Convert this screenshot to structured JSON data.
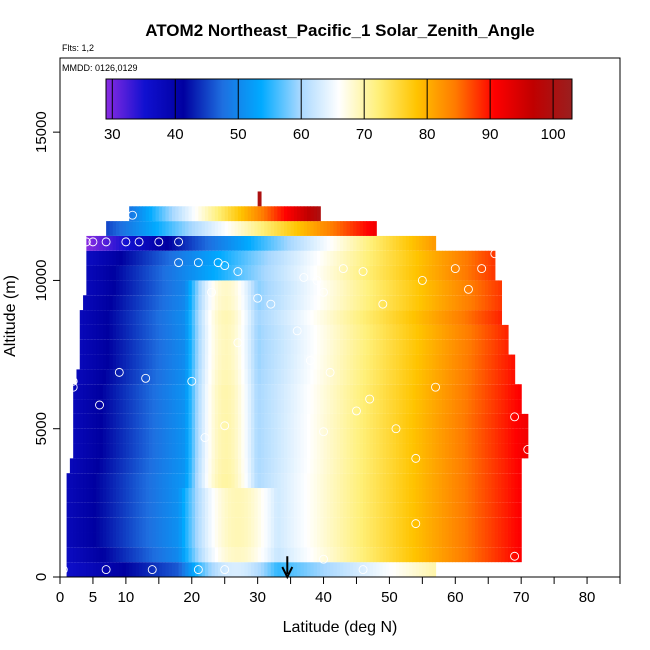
{
  "chart_data": {
    "type": "heatmap",
    "title": "ATOM2 Northeast_Pacific_1 Solar_Zenith_Angle",
    "flights_note": "Flts: 1,2",
    "date_note": "MMDD: 0126,0129",
    "xlabel": "Latitude (deg N)",
    "ylabel": "Altitude (m)",
    "xlim": [
      0,
      85
    ],
    "ylim": [
      0,
      17500
    ],
    "xticks": [
      0,
      5,
      10,
      20,
      30,
      40,
      50,
      60,
      70,
      80
    ],
    "xtick_labels": [
      "0",
      "5",
      "10",
      "20",
      "30",
      "40",
      "50",
      "60",
      "70",
      "80"
    ],
    "xtick_minor": [
      15,
      25,
      35,
      45,
      55,
      65,
      75,
      85
    ],
    "yticks": [
      0,
      5000,
      10000,
      15000
    ],
    "ytick_labels": [
      "0",
      "5000",
      "10000",
      "15000"
    ],
    "colorbar": {
      "min": 29,
      "max": 103,
      "ticks": [
        30,
        40,
        50,
        60,
        70,
        80,
        90,
        100
      ],
      "tick_labels": [
        "30",
        "40",
        "50",
        "60",
        "70",
        "80",
        "90",
        "100"
      ],
      "colors": [
        "#8a2be2",
        "#1010d0",
        "#0000a0",
        "#1e6fe0",
        "#00aaff",
        "#a8d8ff",
        "#ffffff",
        "#fff07a",
        "#ffc400",
        "#ff7a00",
        "#ff0000",
        "#c00000",
        "#9a1f1f"
      ]
    },
    "bands": [
      {
        "alt": [
          0,
          500
        ],
        "lat": [
          1,
          57
        ],
        "v": [
          36,
          70
        ]
      },
      {
        "alt": [
          500,
          1000
        ],
        "lat": [
          1,
          70
        ],
        "v": [
          37,
          91
        ]
      },
      {
        "alt": [
          1000,
          1500
        ],
        "lat": [
          1,
          70
        ],
        "v": [
          38,
          91
        ]
      },
      {
        "alt": [
          1500,
          2000
        ],
        "lat": [
          1,
          70
        ],
        "v": [
          38,
          91
        ]
      },
      {
        "alt": [
          2000,
          2500
        ],
        "lat": [
          1,
          70
        ],
        "v": [
          38,
          91
        ]
      },
      {
        "alt": [
          2500,
          3000
        ],
        "lat": [
          1,
          70
        ],
        "v": [
          38,
          91
        ]
      },
      {
        "alt": [
          3000,
          3500
        ],
        "lat": [
          1,
          70
        ],
        "v": [
          38,
          91
        ]
      },
      {
        "alt": [
          3500,
          4000
        ],
        "lat": [
          1.5,
          70
        ],
        "v": [
          38,
          91
        ]
      },
      {
        "alt": [
          4000,
          4500
        ],
        "lat": [
          2,
          71
        ],
        "v": [
          38,
          92
        ]
      },
      {
        "alt": [
          4500,
          5000
        ],
        "lat": [
          2,
          71
        ],
        "v": [
          38,
          92
        ]
      },
      {
        "alt": [
          5000,
          5500
        ],
        "lat": [
          2,
          71
        ],
        "v": [
          38,
          92
        ]
      },
      {
        "alt": [
          5500,
          6000
        ],
        "lat": [
          2,
          70
        ],
        "v": [
          38,
          91
        ]
      },
      {
        "alt": [
          6000,
          6500
        ],
        "lat": [
          2,
          70
        ],
        "v": [
          38,
          91
        ]
      },
      {
        "alt": [
          6500,
          7000
        ],
        "lat": [
          2.5,
          69
        ],
        "v": [
          38,
          90
        ]
      },
      {
        "alt": [
          7000,
          7500
        ],
        "lat": [
          3,
          69
        ],
        "v": [
          38,
          90
        ]
      },
      {
        "alt": [
          7500,
          8000
        ],
        "lat": [
          3,
          68
        ],
        "v": [
          38,
          89
        ]
      },
      {
        "alt": [
          8000,
          8500
        ],
        "lat": [
          3,
          68
        ],
        "v": [
          38,
          89
        ]
      },
      {
        "alt": [
          8500,
          9000
        ],
        "lat": [
          3,
          67
        ],
        "v": [
          38,
          89
        ]
      },
      {
        "alt": [
          9000,
          9500
        ],
        "lat": [
          3.5,
          67
        ],
        "v": [
          38,
          88
        ]
      },
      {
        "alt": [
          9500,
          10000
        ],
        "lat": [
          4,
          67
        ],
        "v": [
          38,
          88
        ]
      },
      {
        "alt": [
          10000,
          10500
        ],
        "lat": [
          4,
          66
        ],
        "v": [
          38,
          88
        ]
      },
      {
        "alt": [
          10500,
          11000
        ],
        "lat": [
          4,
          66
        ],
        "v": [
          37,
          88
        ]
      },
      {
        "alt": [
          11000,
          11500
        ],
        "lat": [
          4,
          57
        ],
        "v": [
          29,
          82
        ]
      },
      {
        "alt": [
          11500,
          12000
        ],
        "lat": [
          7,
          48
        ],
        "v": [
          45,
          92
        ]
      },
      {
        "alt": [
          12000,
          12500
        ],
        "lat": [
          10.5,
          39.5
        ],
        "v": [
          48,
          100
        ]
      },
      {
        "alt": [
          12500,
          13000
        ],
        "lat": [
          30,
          30.5
        ],
        "v": [
          100,
          100
        ]
      }
    ],
    "samples": [
      {
        "lat": 0.5,
        "alt": 250
      },
      {
        "lat": 7,
        "alt": 250
      },
      {
        "lat": 14,
        "alt": 250
      },
      {
        "lat": 21,
        "alt": 250
      },
      {
        "lat": 25,
        "alt": 250
      },
      {
        "lat": 46,
        "alt": 250
      },
      {
        "lat": 40,
        "alt": 600
      },
      {
        "lat": 69,
        "alt": 700
      },
      {
        "lat": 54,
        "alt": 1800
      },
      {
        "lat": 54,
        "alt": 4000
      },
      {
        "lat": 71,
        "alt": 4300
      },
      {
        "lat": 22,
        "alt": 4700
      },
      {
        "lat": 40,
        "alt": 4900
      },
      {
        "lat": 51,
        "alt": 5000
      },
      {
        "lat": 25,
        "alt": 5100
      },
      {
        "lat": 69,
        "alt": 5400
      },
      {
        "lat": 6,
        "alt": 5800
      },
      {
        "lat": 45,
        "alt": 5600
      },
      {
        "lat": 47,
        "alt": 6000
      },
      {
        "lat": 57,
        "alt": 6400
      },
      {
        "lat": 2,
        "alt": 6400
      },
      {
        "lat": 2,
        "alt": 6600
      },
      {
        "lat": 20,
        "alt": 6600
      },
      {
        "lat": 13,
        "alt": 6700
      },
      {
        "lat": 9,
        "alt": 6900
      },
      {
        "lat": 41,
        "alt": 6900
      },
      {
        "lat": 38,
        "alt": 7300
      },
      {
        "lat": 27,
        "alt": 7900
      },
      {
        "lat": 36,
        "alt": 8300
      },
      {
        "lat": 32,
        "alt": 9200
      },
      {
        "lat": 30,
        "alt": 9400
      },
      {
        "lat": 23,
        "alt": 9600
      },
      {
        "lat": 49,
        "alt": 9200
      },
      {
        "lat": 40,
        "alt": 9600
      },
      {
        "lat": 62,
        "alt": 9700
      },
      {
        "lat": 37,
        "alt": 10100
      },
      {
        "lat": 39,
        "alt": 10000
      },
      {
        "lat": 55,
        "alt": 10000
      },
      {
        "lat": 46,
        "alt": 10300
      },
      {
        "lat": 27,
        "alt": 10300
      },
      {
        "lat": 43,
        "alt": 10400
      },
      {
        "lat": 60,
        "alt": 10400
      },
      {
        "lat": 64,
        "alt": 10400
      },
      {
        "lat": 18,
        "alt": 10600
      },
      {
        "lat": 21,
        "alt": 10600
      },
      {
        "lat": 24,
        "alt": 10600
      },
      {
        "lat": 25,
        "alt": 10500
      },
      {
        "lat": 66,
        "alt": 10900
      },
      {
        "lat": 4,
        "alt": 11300
      },
      {
        "lat": 5,
        "alt": 11300
      },
      {
        "lat": 7,
        "alt": 11300
      },
      {
        "lat": 10,
        "alt": 11300
      },
      {
        "lat": 12,
        "alt": 11300
      },
      {
        "lat": 15,
        "alt": 11300
      },
      {
        "lat": 18,
        "alt": 11300
      },
      {
        "lat": 11,
        "alt": 12200
      }
    ],
    "marker": {
      "lat": 34.5,
      "alt_top": 700,
      "alt_bottom": 0
    }
  }
}
